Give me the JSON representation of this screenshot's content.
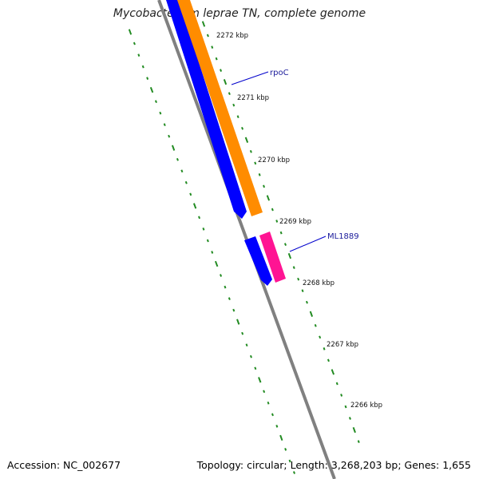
{
  "title": "Mycobacterium leprae TN, complete genome",
  "footer": {
    "accession": "Accession: NC_002677",
    "summary": "Topology: circular; Length: 3,268,203 bp; Genes: 1,655"
  },
  "ticks": [
    "2272 kbp",
    "2271 kbp",
    "2270 kbp",
    "2269 kbp",
    "2268 kbp",
    "2267 kbp",
    "2266 kbp"
  ],
  "genes": [
    {
      "label": "rpoC",
      "color": "#ff8c00"
    },
    {
      "label": "ML1889",
      "color": "#ff1493"
    }
  ],
  "colors": {
    "backbone": "#808080",
    "cds_blue": "#0000ff",
    "gc_dots": "#228b22",
    "label_line": "#0000cc",
    "gene_label": "#1a1a9a"
  }
}
